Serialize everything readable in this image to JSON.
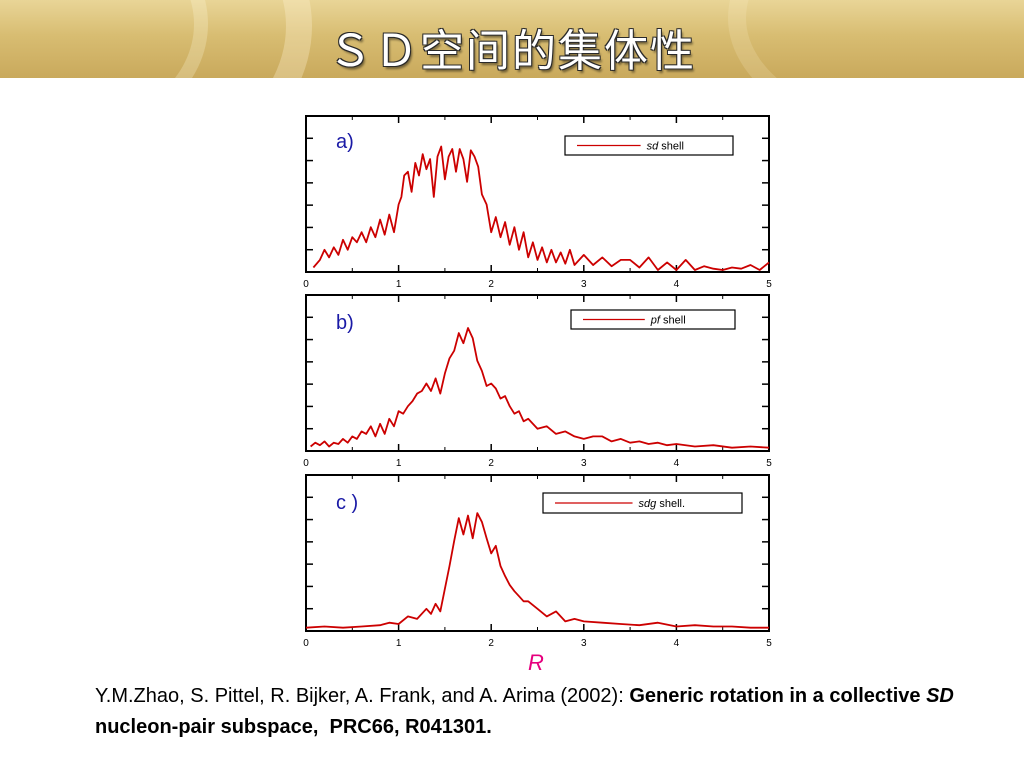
{
  "slide": {
    "title": "ＳＤ空间的集体性",
    "x_axis_symbol": "R"
  },
  "citation": {
    "authors": "Y.M.Zhao, S. Pittel, R. Bijker, A. Frank, and A. Arima (2002):",
    "title_part1": "Generic rotation in a collective",
    "title_italic": "SD",
    "title_part2": "nucleon-pair subspace,",
    "journal": "PRC66, R041301."
  },
  "colors": {
    "curve": "#cc0000",
    "panel_label": "#1a1aa6",
    "axis_symbol": "#e6007e"
  },
  "chart_data": [
    {
      "type": "line",
      "panel_label": "a)",
      "legend": {
        "italic": "sd",
        "rest": " shell"
      },
      "xlim": [
        0,
        5
      ],
      "x_ticks": [
        "0",
        "1",
        "2",
        "3",
        "4",
        "5"
      ],
      "y_tick_count": 7,
      "series": [
        {
          "name": "sd shell",
          "x": [
            0.08,
            0.15,
            0.2,
            0.25,
            0.3,
            0.35,
            0.4,
            0.45,
            0.5,
            0.55,
            0.6,
            0.65,
            0.7,
            0.75,
            0.8,
            0.85,
            0.9,
            0.95,
            1.0,
            1.03,
            1.06,
            1.1,
            1.14,
            1.18,
            1.22,
            1.26,
            1.3,
            1.34,
            1.38,
            1.42,
            1.46,
            1.5,
            1.54,
            1.58,
            1.62,
            1.66,
            1.7,
            1.74,
            1.78,
            1.82,
            1.86,
            1.9,
            1.95,
            2.0,
            2.05,
            2.1,
            2.15,
            2.2,
            2.25,
            2.3,
            2.35,
            2.4,
            2.45,
            2.5,
            2.55,
            2.6,
            2.65,
            2.7,
            2.75,
            2.8,
            2.85,
            2.9,
            3.0,
            3.1,
            3.2,
            3.3,
            3.4,
            3.5,
            3.6,
            3.7,
            3.8,
            3.9,
            4.0,
            4.1,
            4.2,
            4.3,
            4.4,
            4.5,
            4.6,
            4.7,
            4.8,
            4.9,
            5.0
          ],
          "y": [
            0.02,
            0.08,
            0.16,
            0.1,
            0.18,
            0.12,
            0.24,
            0.16,
            0.26,
            0.22,
            0.3,
            0.22,
            0.34,
            0.26,
            0.4,
            0.28,
            0.44,
            0.3,
            0.52,
            0.58,
            0.75,
            0.78,
            0.62,
            0.85,
            0.75,
            0.92,
            0.8,
            0.88,
            0.58,
            0.9,
            0.98,
            0.72,
            0.9,
            0.96,
            0.78,
            0.96,
            0.88,
            0.7,
            0.95,
            0.9,
            0.82,
            0.6,
            0.52,
            0.3,
            0.42,
            0.26,
            0.38,
            0.2,
            0.34,
            0.16,
            0.3,
            0.1,
            0.22,
            0.08,
            0.18,
            0.06,
            0.16,
            0.06,
            0.14,
            0.05,
            0.16,
            0.04,
            0.12,
            0.04,
            0.1,
            0.03,
            0.08,
            0.08,
            0.02,
            0.1,
            0.0,
            0.06,
            0.0,
            0.08,
            0.0,
            0.03,
            0.01,
            0.0,
            0.02,
            0.01,
            0.04,
            0.0,
            0.06
          ]
        }
      ]
    },
    {
      "type": "line",
      "panel_label": "b)",
      "legend": {
        "italic": "pf",
        "rest": " shell"
      },
      "xlim": [
        0,
        5
      ],
      "x_ticks": [
        "0",
        "1",
        "2",
        "3",
        "4",
        "5"
      ],
      "y_tick_count": 7,
      "series": [
        {
          "name": "pf shell",
          "x": [
            0.05,
            0.1,
            0.15,
            0.2,
            0.25,
            0.3,
            0.35,
            0.4,
            0.45,
            0.5,
            0.55,
            0.6,
            0.65,
            0.7,
            0.75,
            0.8,
            0.85,
            0.9,
            0.95,
            1.0,
            1.05,
            1.1,
            1.15,
            1.2,
            1.25,
            1.3,
            1.35,
            1.4,
            1.45,
            1.5,
            1.55,
            1.6,
            1.65,
            1.7,
            1.75,
            1.8,
            1.85,
            1.9,
            1.95,
            2.0,
            2.05,
            2.1,
            2.15,
            2.2,
            2.25,
            2.3,
            2.35,
            2.4,
            2.5,
            2.6,
            2.7,
            2.8,
            2.9,
            3.0,
            3.1,
            3.2,
            3.3,
            3.4,
            3.5,
            3.6,
            3.7,
            3.8,
            3.9,
            4.0,
            4.2,
            4.4,
            4.6,
            4.8,
            5.0
          ],
          "y": [
            0.02,
            0.05,
            0.03,
            0.06,
            0.02,
            0.05,
            0.04,
            0.08,
            0.05,
            0.1,
            0.08,
            0.14,
            0.12,
            0.18,
            0.1,
            0.2,
            0.12,
            0.24,
            0.18,
            0.3,
            0.28,
            0.34,
            0.38,
            0.44,
            0.46,
            0.52,
            0.46,
            0.56,
            0.44,
            0.6,
            0.72,
            0.78,
            0.92,
            0.84,
            0.96,
            0.88,
            0.7,
            0.62,
            0.5,
            0.52,
            0.48,
            0.4,
            0.42,
            0.34,
            0.28,
            0.3,
            0.22,
            0.24,
            0.16,
            0.18,
            0.12,
            0.14,
            0.1,
            0.08,
            0.1,
            0.1,
            0.06,
            0.08,
            0.05,
            0.06,
            0.04,
            0.05,
            0.03,
            0.04,
            0.02,
            0.03,
            0.01,
            0.02,
            0.01
          ]
        }
      ]
    },
    {
      "type": "line",
      "panel_label": "c )",
      "legend": {
        "italic": "sdg",
        "rest": " shell."
      },
      "xlim": [
        0,
        5
      ],
      "x_ticks": [
        "0",
        "1",
        "2",
        "3",
        "4",
        "5"
      ],
      "y_tick_count": 7,
      "series": [
        {
          "name": "sdg shell.",
          "x": [
            0.0,
            0.2,
            0.4,
            0.6,
            0.8,
            0.9,
            1.0,
            1.1,
            1.2,
            1.3,
            1.35,
            1.4,
            1.45,
            1.5,
            1.55,
            1.6,
            1.65,
            1.7,
            1.75,
            1.8,
            1.85,
            1.9,
            1.95,
            2.0,
            2.05,
            2.1,
            2.15,
            2.2,
            2.25,
            2.3,
            2.35,
            2.4,
            2.5,
            2.6,
            2.7,
            2.8,
            2.9,
            3.0,
            3.2,
            3.4,
            3.6,
            3.8,
            4.0,
            4.2,
            4.4,
            4.6,
            4.8,
            5.0
          ],
          "y": [
            0.01,
            0.02,
            0.01,
            0.02,
            0.03,
            0.05,
            0.04,
            0.1,
            0.08,
            0.16,
            0.12,
            0.2,
            0.14,
            0.32,
            0.5,
            0.7,
            0.88,
            0.75,
            0.9,
            0.72,
            0.92,
            0.85,
            0.72,
            0.6,
            0.66,
            0.5,
            0.42,
            0.35,
            0.3,
            0.26,
            0.22,
            0.22,
            0.16,
            0.1,
            0.14,
            0.06,
            0.08,
            0.06,
            0.05,
            0.04,
            0.03,
            0.05,
            0.02,
            0.03,
            0.02,
            0.02,
            0.01,
            0.01
          ]
        }
      ]
    }
  ]
}
